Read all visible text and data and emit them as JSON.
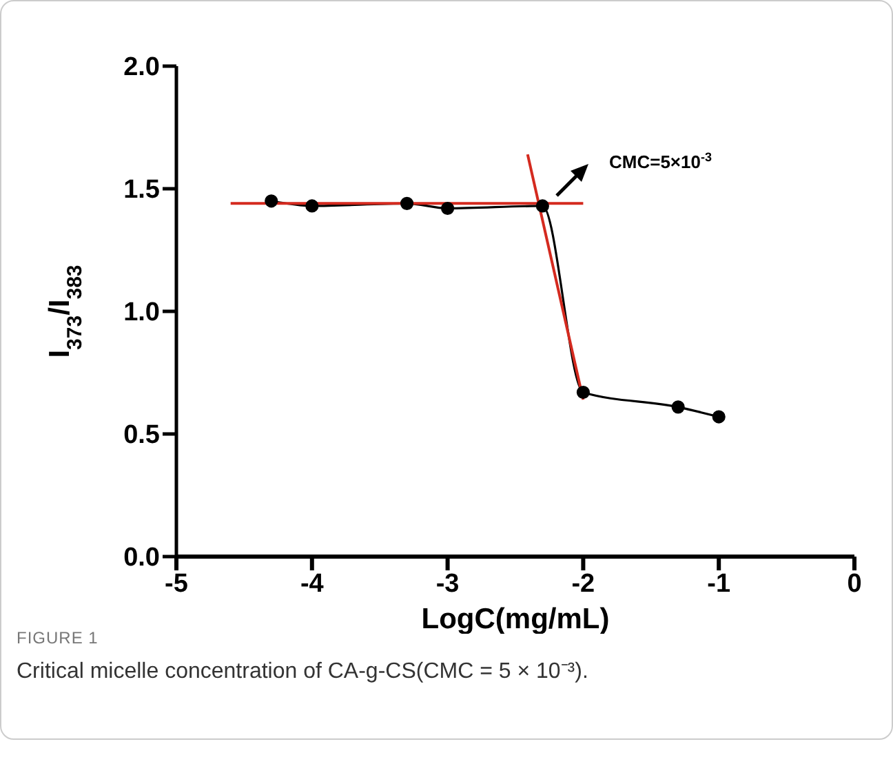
{
  "chart_data": {
    "type": "line",
    "xlabel": "LogC(mg/mL)",
    "ylabel": "I$_{373}$/I$_{383}$",
    "xlim": [
      -5,
      0
    ],
    "xticks": [
      -5,
      -4,
      -3,
      -2,
      -1,
      0
    ],
    "ylim": [
      0,
      2
    ],
    "yticks": [
      {
        "value": 0,
        "label": "0.0"
      },
      {
        "value": 0.5,
        "label": "0.5"
      },
      {
        "value": 1,
        "label": "1.0"
      },
      {
        "value": 1.5,
        "label": "1.5"
      },
      {
        "value": 2,
        "label": "2.0"
      }
    ],
    "series": [
      {
        "color": "#000000",
        "marker": "circle",
        "x": [
          -4.3,
          -4,
          -3.3,
          -3,
          -2.3,
          -2,
          -1.3,
          -1
        ],
        "values": [
          1.45,
          1.43,
          1.44,
          1.42,
          1.43,
          0.67,
          0.61,
          0.57
        ]
      },
      {
        "color": "#d42a1f",
        "marker": "none",
        "x": [
          -4.6,
          -2.0
        ],
        "values": [
          1.44,
          1.44
        ]
      },
      {
        "color": "#d42a1f",
        "marker": "none",
        "x": [
          -2.41,
          -2.0
        ],
        "values": [
          1.64,
          0.64
        ]
      }
    ],
    "annotations": [
      "CMC=5×10$^{-3}$",
      "FIGURE 1",
      "Critical micelle concentration of CA-g-CS(CMC = 5 × 10⁻³)."
    ]
  }
}
